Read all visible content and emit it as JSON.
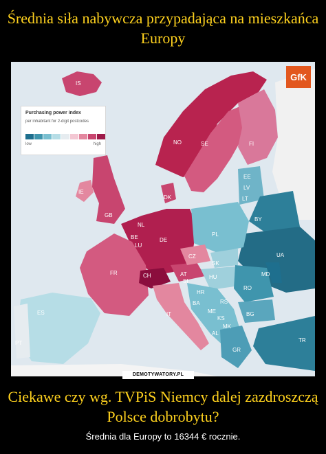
{
  "header": {
    "title": "Średnia siła nabywcza przypadająca na mieszkańca Europy"
  },
  "legend": {
    "title": "Purchasing power index",
    "subtitle": "per inhabitant for 2-digit postcodes",
    "low": "low",
    "high": "high",
    "colors": [
      "#1e6f8e",
      "#3f95ad",
      "#79bfd0",
      "#b6dde6",
      "#e6ecf0",
      "#f3c7d3",
      "#e3879f",
      "#c8456f",
      "#9e1a49"
    ]
  },
  "brand": {
    "logo_text": "GfK",
    "logo_color": "#e2571e"
  },
  "watermark": {
    "text": "DEMOTYWATORY.PL"
  },
  "map": {
    "country_labels": [
      "IS",
      "NO",
      "SE",
      "FI",
      "EE",
      "LV",
      "LT",
      "IE",
      "GB",
      "DK",
      "NL",
      "BE",
      "LU",
      "DE",
      "PL",
      "BY",
      "UA",
      "FR",
      "CH",
      "AT",
      "CZ",
      "SK",
      "HU",
      "MD",
      "RO",
      "SI",
      "HR",
      "BA",
      "RS",
      "ME",
      "KS",
      "MK",
      "AL",
      "BG",
      "IT",
      "ES",
      "PT",
      "GR",
      "TR"
    ]
  },
  "caption": {
    "title": "Ciekawe czy wg. TVPiS Niemcy dalej zazdroszczą Polsce dobrobytu?",
    "subtitle": "Średnia dla Europy to 16344 € rocznie."
  }
}
